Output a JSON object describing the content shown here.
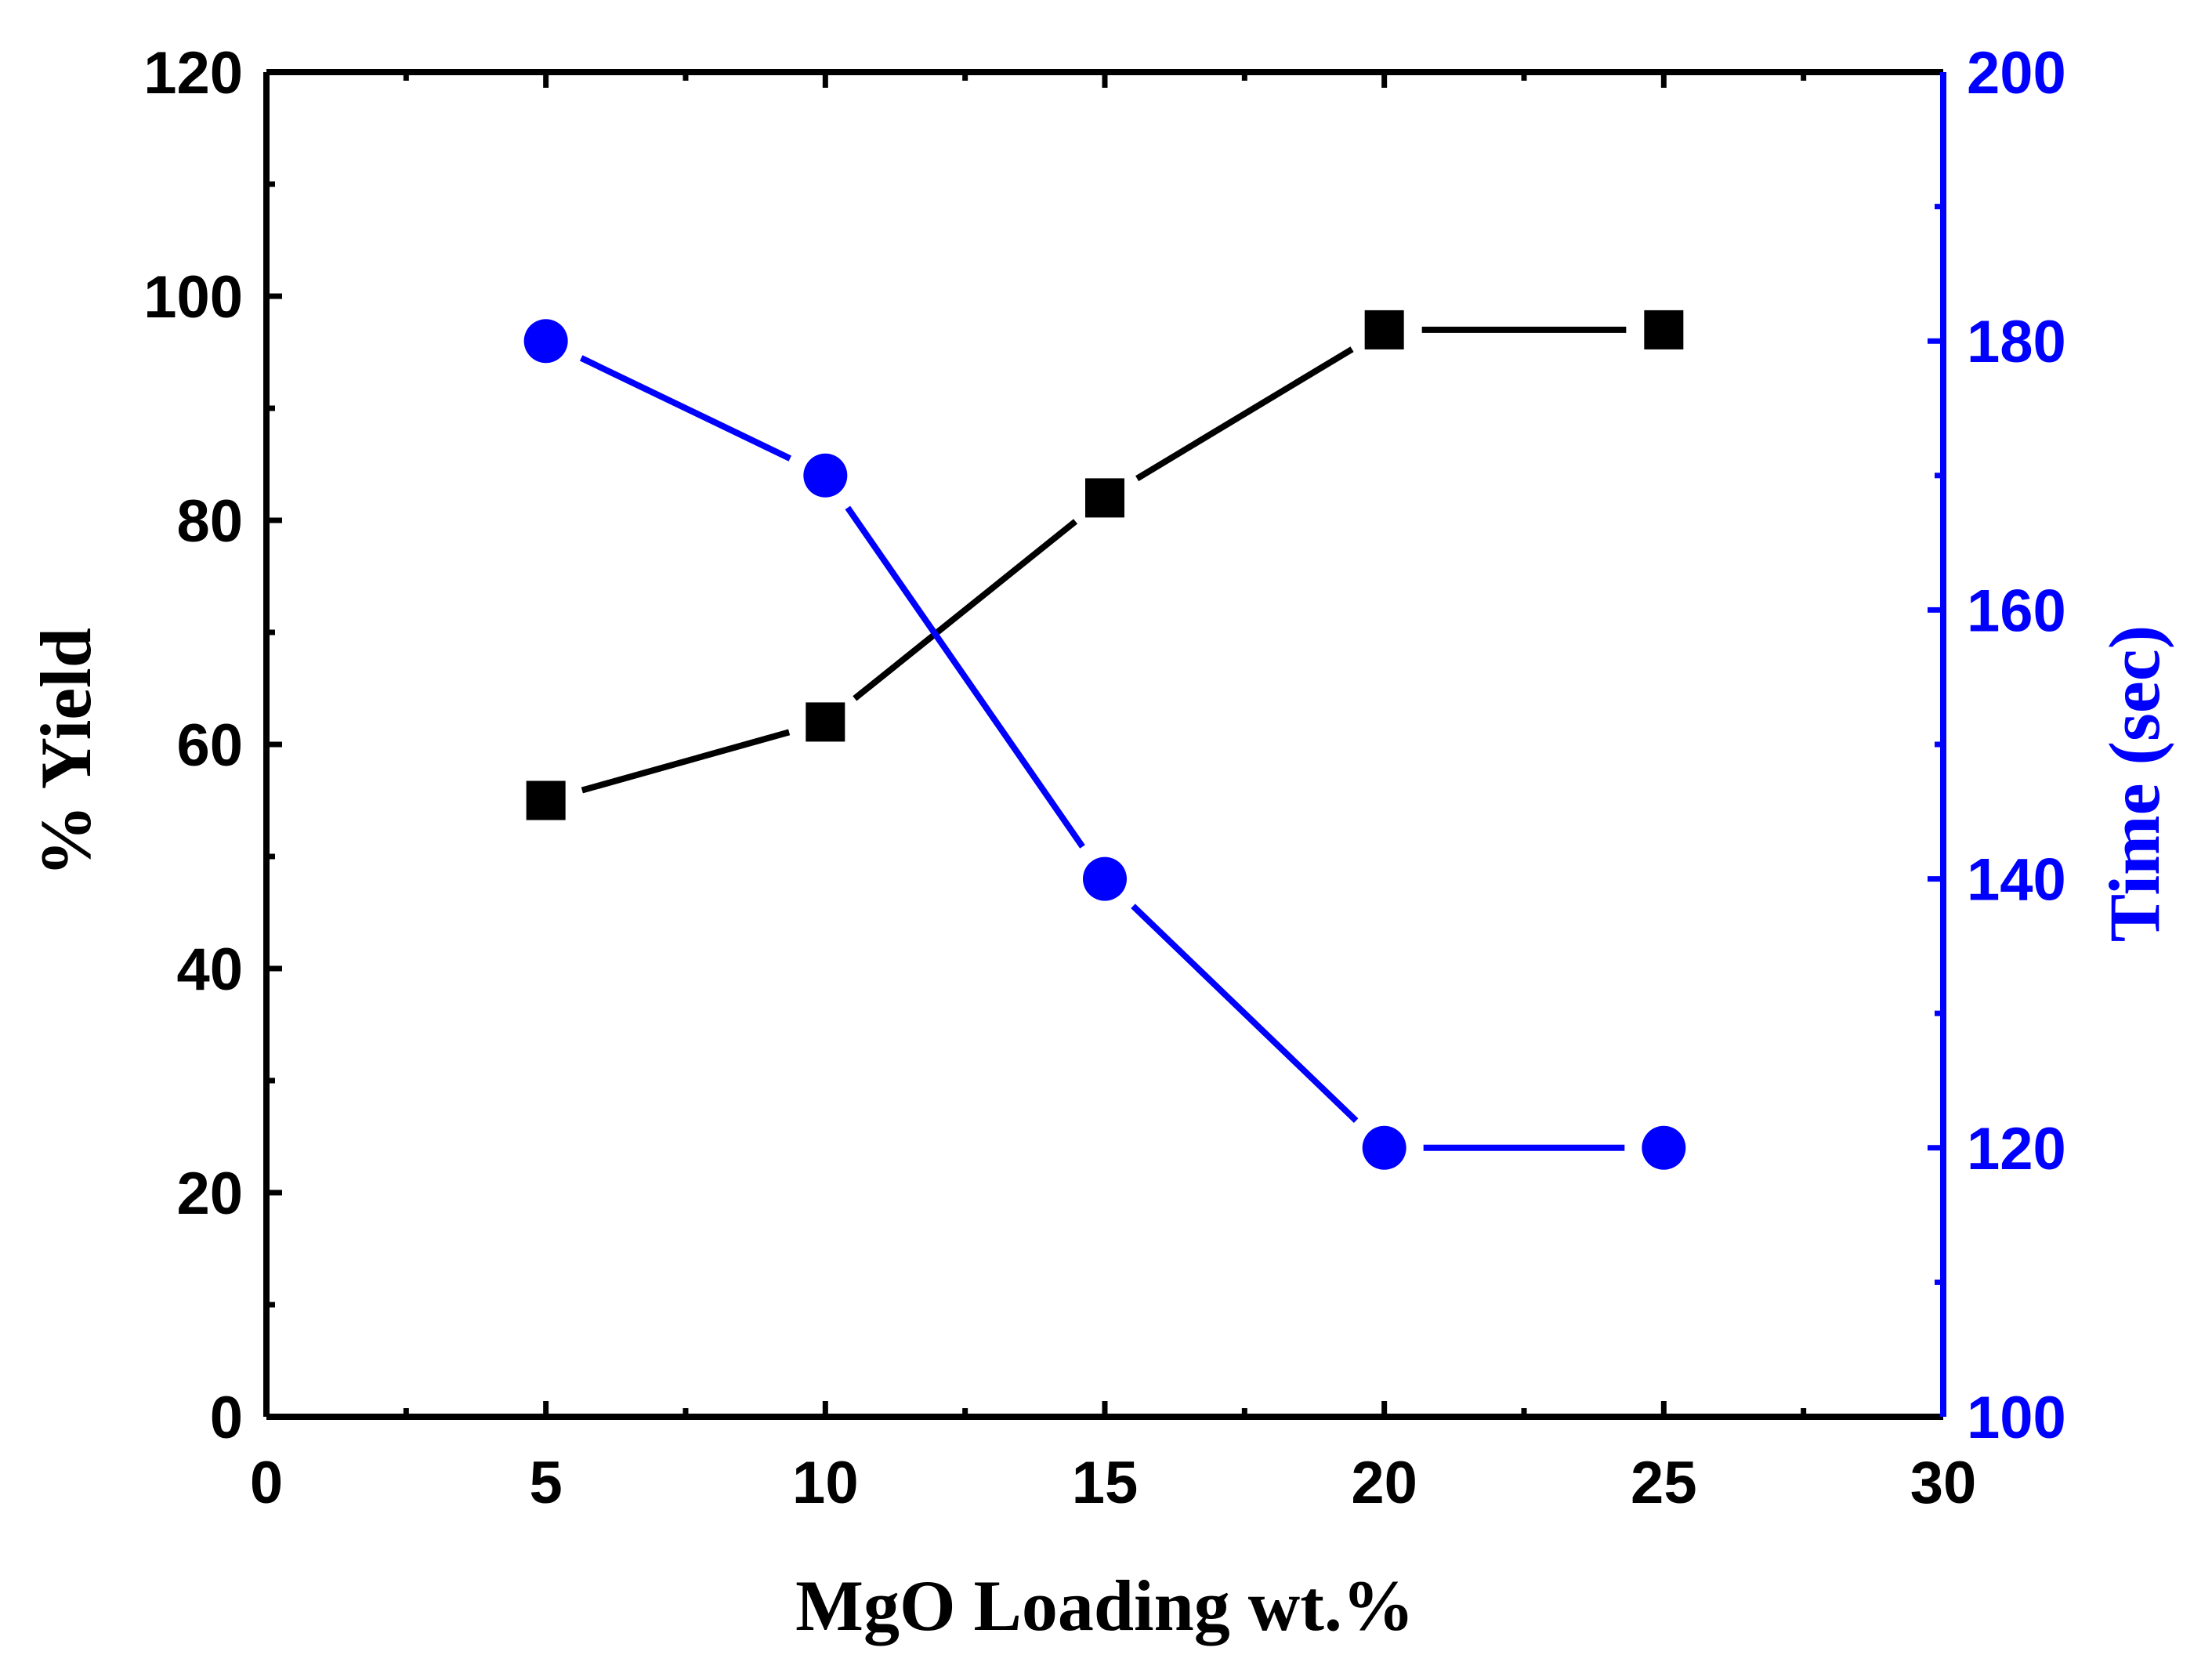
{
  "chart_data": {
    "type": "line",
    "title": "",
    "xlabel": "MgO Loading wt.%",
    "ylabel": "% Yield",
    "y2label": "Time (sec)",
    "xlim": [
      0,
      30
    ],
    "ylim": [
      0,
      120
    ],
    "y2lim": [
      100,
      200
    ],
    "grid": false,
    "x": [
      5,
      10,
      15,
      20,
      25
    ],
    "x_ticks": [
      0,
      5,
      10,
      15,
      20,
      25,
      30
    ],
    "x_tick_labels": [
      "0",
      "5",
      "10",
      "15",
      "20",
      "25",
      "30"
    ],
    "y_ticks": [
      0,
      20,
      40,
      60,
      80,
      100,
      120
    ],
    "y_tick_labels": [
      "0",
      "20",
      "40",
      "60",
      "80",
      "100",
      "120"
    ],
    "y2_ticks": [
      100,
      120,
      140,
      160,
      180,
      200
    ],
    "y2_tick_labels": [
      "100",
      "120",
      "140",
      "160",
      "180",
      "200"
    ],
    "series": [
      {
        "name": "% Yield",
        "axis": "left",
        "marker": "square",
        "color": "#000000",
        "values": [
          55,
          62,
          82,
          97,
          97
        ]
      },
      {
        "name": "Time (sec)",
        "axis": "right",
        "marker": "circle",
        "color": "#0000ff",
        "values": [
          180,
          170,
          140,
          120,
          120
        ]
      }
    ]
  }
}
